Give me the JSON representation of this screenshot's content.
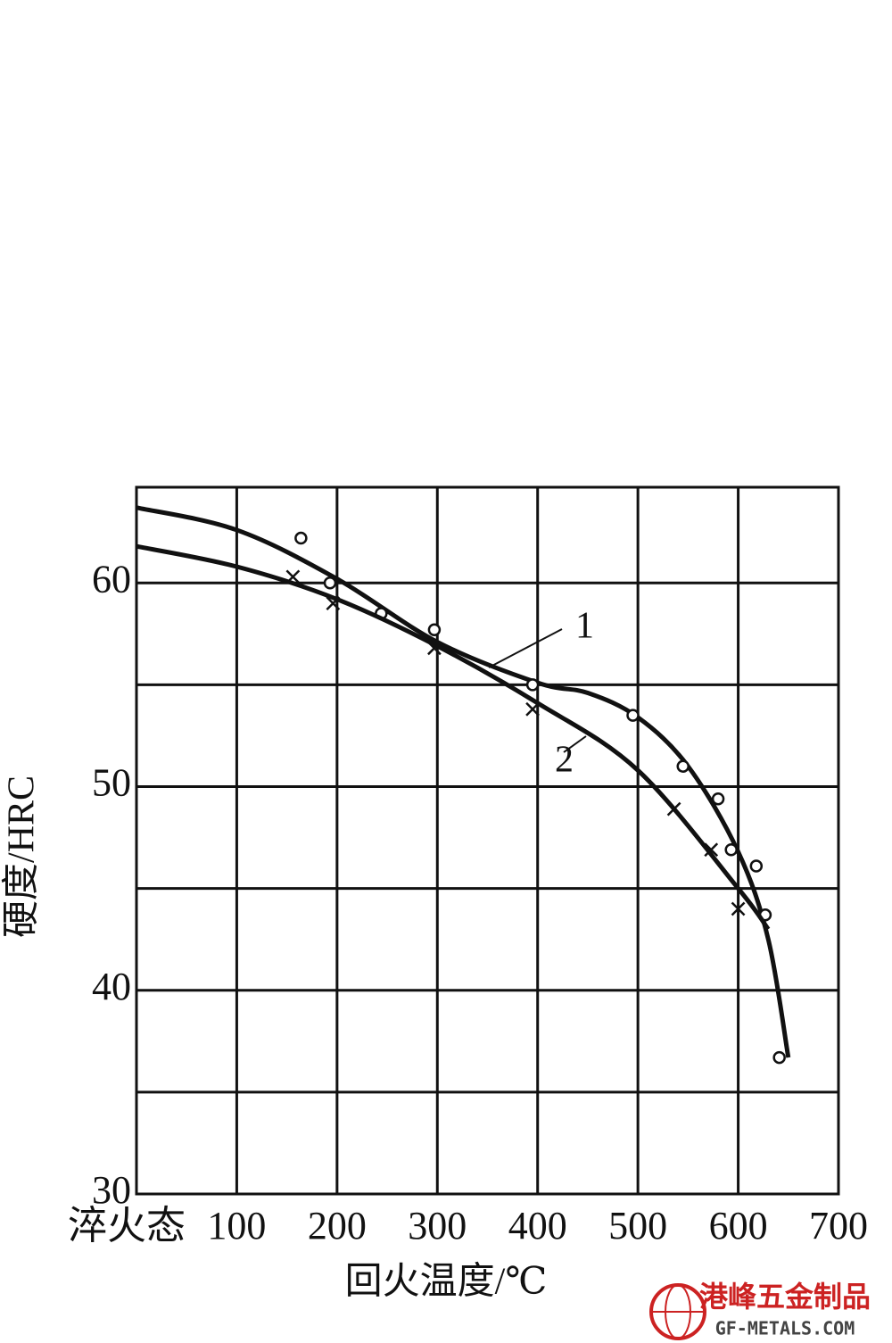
{
  "chart_data": {
    "type": "line",
    "y_label": "硬度/HRC",
    "x_label": "回火温度/℃",
    "xlim": [
      0,
      700
    ],
    "ylim": [
      30,
      64.7
    ],
    "xticks": [
      {
        "value": 0,
        "label": "淬火态"
      },
      100,
      200,
      300,
      400,
      500,
      600,
      700
    ],
    "yticks": [
      30,
      40,
      50,
      60
    ],
    "yminor": [
      35,
      45,
      55
    ],
    "grid": true,
    "series": [
      {
        "name": "1",
        "color": "#111111",
        "marker": "circle",
        "x": [
          0,
          100,
          200,
          300,
          400,
          450,
          500,
          550,
          600,
          630,
          650
        ],
        "values": [
          63.7,
          62.6,
          60.2,
          57.1,
          55.1,
          54.6,
          53.4,
          51.0,
          46.8,
          42.5,
          36.7
        ],
        "points_x": [
          164,
          193,
          244,
          297,
          395,
          495,
          545,
          580,
          593,
          618,
          627,
          641
        ],
        "points_y": [
          62.2,
          60.0,
          58.5,
          57.7,
          55.0,
          53.5,
          51.0,
          49.4,
          46.9,
          46.1,
          43.7,
          36.7
        ]
      },
      {
        "name": "2",
        "color": "#111111",
        "marker": "cross",
        "x": [
          0,
          100,
          200,
          300,
          400,
          500,
          600,
          630
        ],
        "values": [
          61.8,
          60.8,
          59.2,
          56.9,
          54.1,
          50.8,
          45.0,
          43.0
        ],
        "points_x": [
          156,
          196,
          297,
          395,
          536,
          573,
          600
        ],
        "points_y": [
          60.3,
          59.0,
          56.8,
          53.8,
          48.9,
          46.9,
          44.0
        ]
      }
    ],
    "watermark": {
      "name": "港峰五金制品",
      "url": "GF-METALS.COM"
    }
  }
}
